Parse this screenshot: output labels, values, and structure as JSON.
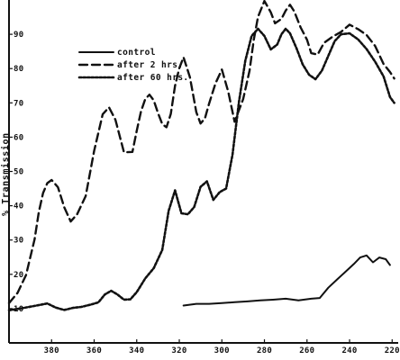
{
  "chart_data": {
    "type": "line",
    "title": "",
    "xlabel": "",
    "ylabel": "% Transmission",
    "xlim": [
      400,
      218
    ],
    "ylim": [
      0,
      100
    ],
    "x_ticks": [
      380,
      360,
      340,
      320,
      300,
      280,
      260,
      240,
      220
    ],
    "y_ticks": [
      10,
      20,
      30,
      40,
      50,
      60,
      70,
      80,
      90
    ],
    "y_tick_labels": [
      "10",
      "20",
      "30",
      "40",
      "50",
      "60",
      "70",
      "80",
      "90"
    ],
    "grid": false,
    "legend_position": "top-left",
    "series": [
      {
        "name": "control",
        "style": "solid",
        "color": "#111111",
        "x": [
          318,
          312,
          306,
          300,
          294,
          288,
          282,
          276,
          270,
          264,
          258,
          254,
          250,
          246,
          242,
          238,
          235,
          232,
          229,
          226,
          223,
          221
        ],
        "y": [
          10.9,
          11.4,
          11.4,
          11.6,
          11.9,
          12.1,
          12.4,
          12.6,
          12.9,
          12.4,
          12.9,
          13.1,
          16.1,
          18.4,
          20.7,
          23.0,
          24.9,
          25.5,
          23.5,
          24.9,
          24.4,
          22.7
        ]
      },
      {
        "name": "after 2 hrs.",
        "style": "dashed",
        "color": "#111111",
        "x": [
          400,
          396,
          392,
          388,
          386,
          384,
          382,
          380,
          377,
          374,
          371,
          368,
          364,
          360,
          356,
          353,
          350,
          346,
          342,
          340,
          338,
          336,
          334,
          332,
          330,
          328,
          326,
          324,
          322,
          320,
          318,
          315,
          312,
          310,
          308,
          306,
          303,
          300,
          297,
          294,
          290,
          287,
          285,
          283,
          280,
          277,
          275,
          272,
          270,
          268,
          266,
          263,
          260,
          258,
          255,
          252,
          248,
          244,
          240,
          236,
          232,
          228,
          224,
          221,
          219
        ],
        "y": [
          11.6,
          14.6,
          19.8,
          30.2,
          38.2,
          43.7,
          46.6,
          47.5,
          45.4,
          39.5,
          35.4,
          37.5,
          42.8,
          56.0,
          66.7,
          68.7,
          65.1,
          55.6,
          55.7,
          61.9,
          67.5,
          71.1,
          72.4,
          70.7,
          67.0,
          63.8,
          62.9,
          66.8,
          75.0,
          80.1,
          83.3,
          77.5,
          67.3,
          64.0,
          65.4,
          69.8,
          75.7,
          79.7,
          73.2,
          64.5,
          71.1,
          79.4,
          88.4,
          95.1,
          99.7,
          96.4,
          93.2,
          94.5,
          96.9,
          98.6,
          96.7,
          92.0,
          88.4,
          84.5,
          84.1,
          87.5,
          89.3,
          90.7,
          92.8,
          91.5,
          89.8,
          86.6,
          81.3,
          79.0,
          77.1
        ]
      },
      {
        "name": "after 60 hrs.",
        "style": "dotted",
        "color": "#111111",
        "x": [
          400,
          394,
          388,
          382,
          378,
          374,
          370,
          366,
          362,
          358,
          355,
          352,
          349,
          346,
          343,
          340,
          336,
          332,
          328,
          325,
          322,
          319,
          316,
          313,
          310,
          307,
          304,
          301,
          298,
          295,
          292,
          289,
          286,
          283,
          280,
          277,
          274,
          272,
          270,
          268,
          265,
          262,
          259,
          256,
          253,
          250,
          247,
          244,
          240,
          236,
          232,
          228,
          224,
          221,
          219
        ],
        "y": [
          9.5,
          10.1,
          10.8,
          11.5,
          10.3,
          9.6,
          10.2,
          10.5,
          11.1,
          11.8,
          14.1,
          15.2,
          14.1,
          12.6,
          12.7,
          14.8,
          18.8,
          21.8,
          27.1,
          38.5,
          44.5,
          37.8,
          37.5,
          39.6,
          45.5,
          47.1,
          41.7,
          44.0,
          45.0,
          54.9,
          70.2,
          82.3,
          89.5,
          91.6,
          89.5,
          85.6,
          87.0,
          90.0,
          91.6,
          90.3,
          86.0,
          81.2,
          78.2,
          76.9,
          79.4,
          83.7,
          88.0,
          90.0,
          90.3,
          88.5,
          85.7,
          82.0,
          77.7,
          71.7,
          70.0
        ]
      }
    ]
  }
}
